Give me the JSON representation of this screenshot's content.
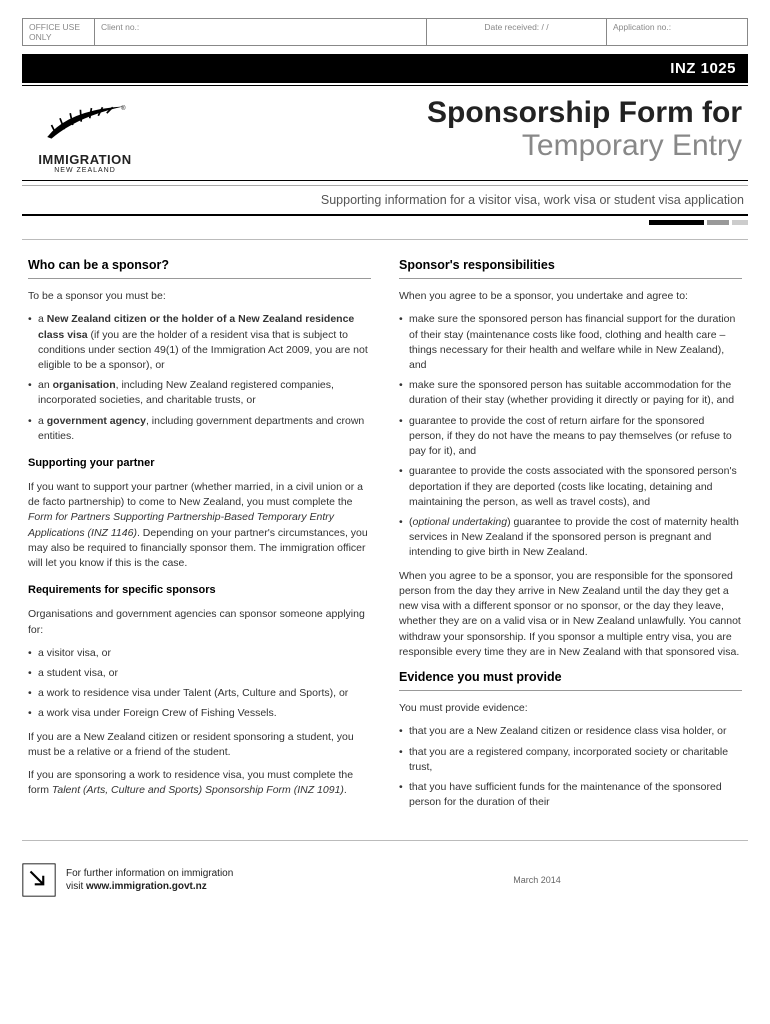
{
  "office": {
    "label": "OFFICE USE ONLY",
    "client": "Client no.:",
    "date": "Date received:          /          /",
    "app": "Application no.:"
  },
  "form_code": "INZ 1025",
  "logo": {
    "line1": "IMMIGRATION",
    "line2": "NEW ZEALAND"
  },
  "title": {
    "main": "Sponsorship Form for",
    "sub": "Temporary Entry"
  },
  "subtitle": "Supporting information for a visitor visa, work visa or student visa application",
  "left": {
    "h1": "Who can be a sponsor?",
    "intro": "To be a sponsor you must be:",
    "items1": [
      "a <b>New Zealand citizen or the holder of a New Zealand residence class visa</b> (if you are the holder of a resident visa that is subject to conditions under section 49(1) of the Immigration Act 2009, you are not eligible to be a sponsor), or",
      "an <b>organisation</b>, including New Zealand registered companies, incorporated societies, and charitable trusts, or",
      "a <b>government agency</b>, including government departments and crown entities."
    ],
    "h2": "Supporting your partner",
    "p2": "If you want to support your partner (whether married, in a civil union or a de facto partnership) to come to New Zealand, you must complete the <i>Form for Partners Supporting Partnership-Based Temporary Entry Applications (INZ 1146)</i>. Depending on your partner's circumstances, you may also be required to financially sponsor them. The immigration officer will let you know if this is the case.",
    "h3": "Requirements for specific sponsors",
    "p3": "Organisations and government agencies can sponsor someone applying for:",
    "items3": [
      "a visitor visa, or",
      "a student visa, or",
      "a work to residence visa under Talent (Arts, Culture and Sports), or",
      "a work visa under Foreign Crew of Fishing Vessels."
    ],
    "p4": "If you are a New Zealand citizen or resident sponsoring a student, you must be a relative or a friend of the student.",
    "p5": "If you are sponsoring a work to residence visa, you must complete the form <i>Talent (Arts, Culture and Sports) Sponsorship Form (INZ 1091)</i>."
  },
  "right": {
    "h1": "Sponsor's responsibilities",
    "intro": "When you agree to be a sponsor, you undertake and agree to:",
    "items1": [
      "make sure the sponsored person has financial support for the duration of their stay (maintenance costs like food, clothing and health care – things necessary for their health and welfare while in New Zealand), and",
      "make sure the sponsored person has suitable accommodation for the duration of their stay (whether providing it directly or paying for it), and",
      "guarantee to provide the cost of return airfare for the sponsored person, if they do not have the means to pay themselves (or refuse to pay for it), and",
      "guarantee to provide the costs associated with the sponsored person's deportation if they are deported (costs like locating, detaining and maintaining the person, as well as travel costs), and",
      "(<i>optional undertaking</i>) guarantee to provide the cost of maternity health services in New Zealand if the sponsored person is pregnant and intending to give birth in New Zealand."
    ],
    "p2": "When you agree to be a sponsor, you are responsible for the sponsored person from the day they arrive in New Zealand until the day they get a new visa with a different sponsor or no sponsor, or the day they leave, whether they are on a valid visa or in New Zealand unlawfully. You cannot withdraw your sponsorship. If you sponsor a multiple entry visa, you are responsible every time they are in New Zealand with that sponsored visa.",
    "h2": "Evidence you must provide",
    "p3": "You must provide evidence:",
    "items2": [
      "that you are a New Zealand citizen or residence class visa holder, or",
      "that you are a registered company, incorporated society or charitable trust,",
      "that you have sufficient funds for the maintenance of the sponsored person for the duration of their"
    ]
  },
  "footer": {
    "line1": "For further information on immigration",
    "line2": "visit <b>www.immigration.govt.nz</b>",
    "date": "March 2014"
  }
}
